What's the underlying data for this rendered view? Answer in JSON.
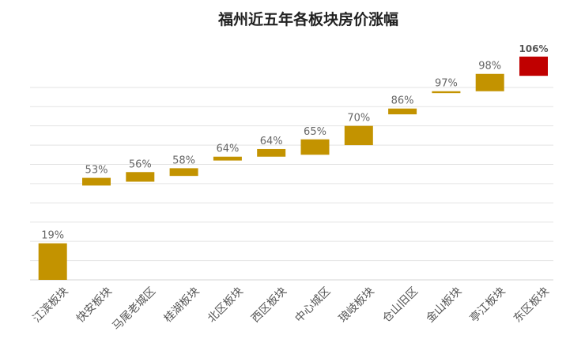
{
  "chart_data": {
    "type": "bar",
    "title": "福州近五年各板块房价涨幅",
    "categories": [
      "江滨板块",
      "快安板块",
      "马尾老城区",
      "桂湖板块",
      "北区板块",
      "西区板块",
      "中心城区",
      "琅岐板块",
      "仓山旧区",
      "金山板块",
      "亭江板块",
      "东区板块"
    ],
    "value_labels": [
      "19%",
      "53%",
      "56%",
      "58%",
      "64%",
      "64%",
      "65%",
      "70%",
      "86%",
      "97%",
      "98%",
      "106%"
    ],
    "ranges": [
      {
        "start": 0,
        "end": 19
      },
      {
        "start": 49,
        "end": 53
      },
      {
        "start": 51,
        "end": 56
      },
      {
        "start": 54,
        "end": 58
      },
      {
        "start": 62,
        "end": 64
      },
      {
        "start": 68,
        "end": 64
      },
      {
        "start": 73,
        "end": 65
      },
      {
        "start": 80,
        "end": 70
      },
      {
        "start": 89,
        "end": 86
      },
      {
        "start": 98,
        "end": 97
      },
      {
        "start": 107,
        "end": 98
      },
      {
        "start": 116,
        "end": 106
      }
    ],
    "ylim": [
      0,
      120
    ],
    "grid": true,
    "colors": {
      "bar": "#C39300",
      "highlight": "#C00000",
      "grid": "#E3E3E3"
    },
    "highlight_index": 11
  }
}
